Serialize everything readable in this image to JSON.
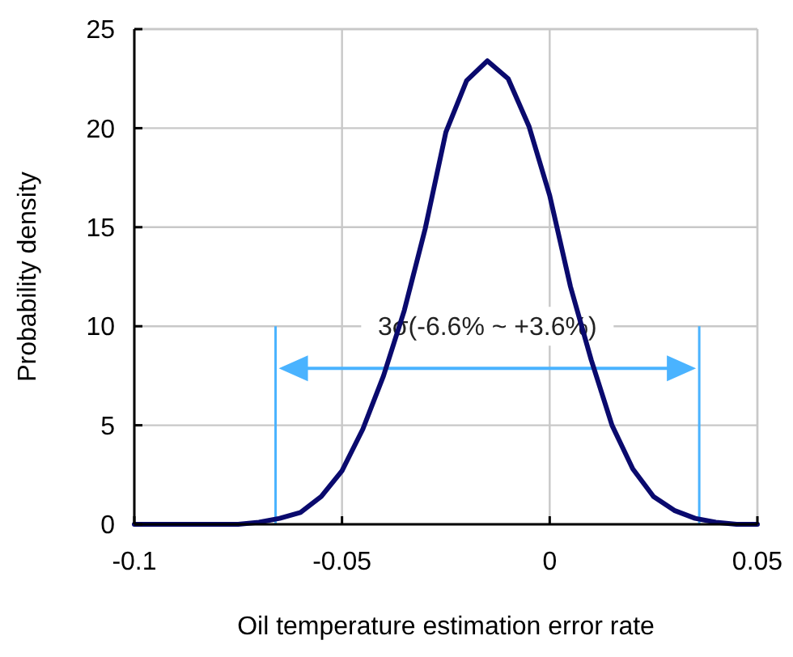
{
  "chart_data": {
    "type": "line",
    "xlabel": "Oil temperature estimation error rate",
    "ylabel": "Probability density",
    "x": [
      -0.1,
      -0.075,
      -0.07,
      -0.065,
      -0.06,
      -0.055,
      -0.05,
      -0.045,
      -0.04,
      -0.035,
      -0.03,
      -0.025,
      -0.02,
      -0.015,
      -0.01,
      -0.005,
      0,
      0.005,
      0.01,
      0.015,
      0.02,
      0.025,
      0.03,
      0.035,
      0.04,
      0.045,
      0.05
    ],
    "series": [
      {
        "color": "#0a0a6e",
        "values": [
          0,
          0,
          0.1,
          0.3,
          0.6,
          1.4,
          2.7,
          4.8,
          7.5,
          10.8,
          14.9,
          19.8,
          22.4,
          23.4,
          22.5,
          20.1,
          16.6,
          12.0,
          8.3,
          5.0,
          2.8,
          1.4,
          0.7,
          0.3,
          0.1,
          0,
          0
        ]
      }
    ],
    "xlim": [
      -0.1,
      0.05
    ],
    "xticks": [
      -0.1,
      -0.05,
      0,
      0.05
    ],
    "ylim": [
      0,
      25
    ],
    "yticks": [
      0,
      5,
      10,
      15,
      20,
      25
    ],
    "grid": true,
    "marker": "none",
    "line_style": "solid",
    "ref_lines": [
      {
        "axis": "x",
        "value": -0.066,
        "color": "#4ab3ff"
      },
      {
        "axis": "x",
        "value": 0.036,
        "color": "#4ab3ff"
      }
    ],
    "annotations": [
      "3σ(-6.6% ~ +3.6%)"
    ]
  }
}
